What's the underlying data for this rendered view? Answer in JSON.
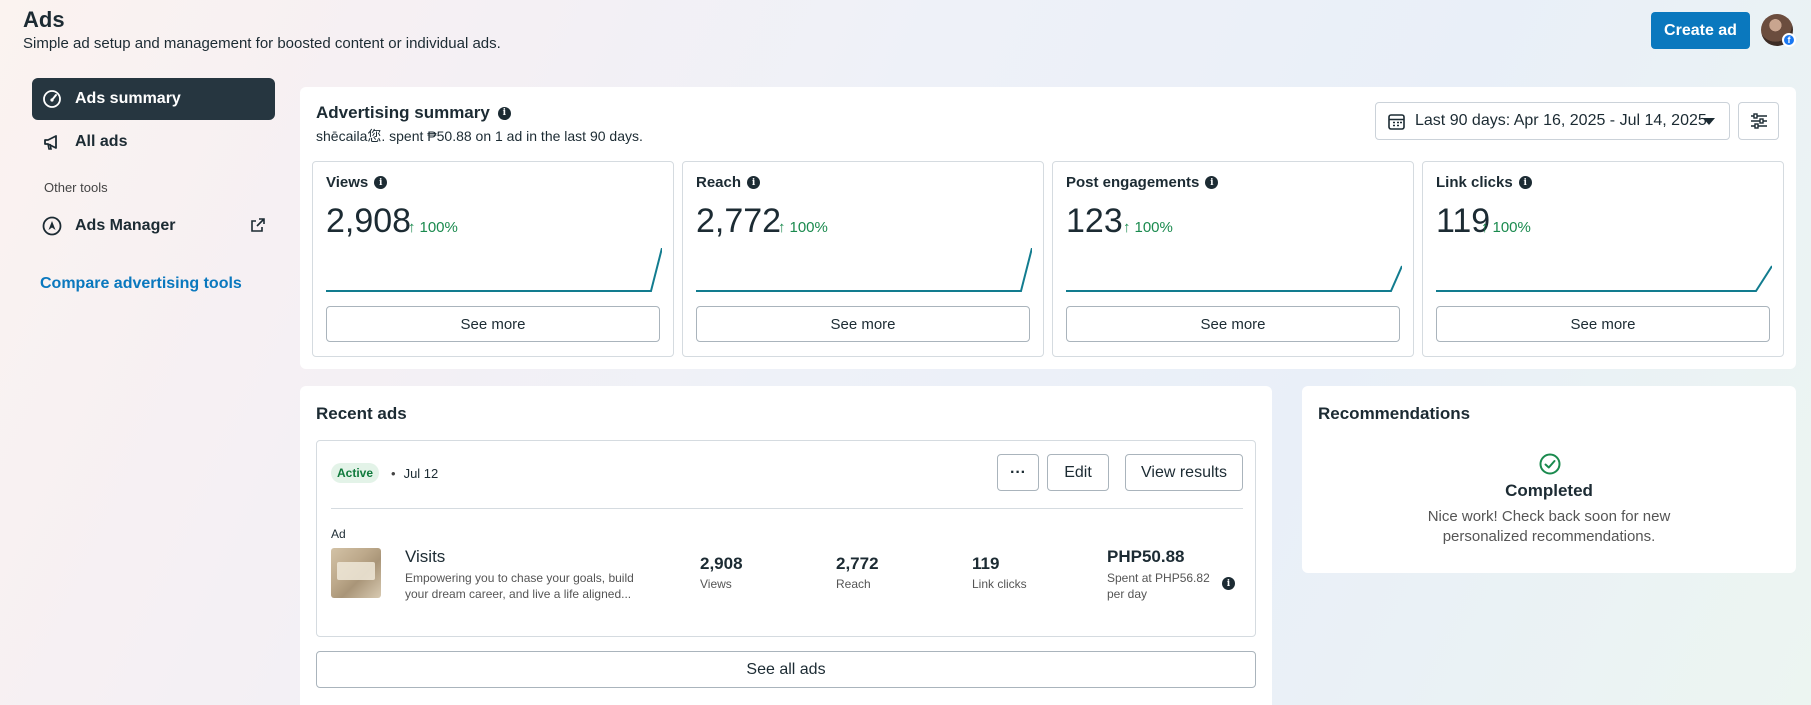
{
  "header": {
    "title": "Ads",
    "subtitle": "Simple ad setup and management for boosted content or individual ads.",
    "create_label": "Create ad"
  },
  "sidebar": {
    "items": [
      {
        "label": "Ads summary",
        "icon": "gauge-icon",
        "active": true
      },
      {
        "label": "All ads",
        "icon": "megaphone-icon",
        "active": false
      }
    ],
    "other_tools_label": "Other tools",
    "ads_manager_label": "Ads Manager",
    "compare_label": "Compare advertising tools"
  },
  "summary": {
    "title": "Advertising summary",
    "subtitle": "shēcaila您. spent ₱50.88 on 1 ad in the last 90 days.",
    "date_range": "Last 90 days: Apr 16, 2025 - Jul 14, 2025",
    "see_more_label": "See more",
    "metrics": [
      {
        "label": "Views",
        "value": "2,908",
        "change": "100%"
      },
      {
        "label": "Reach",
        "value": "2,772",
        "change": "100%"
      },
      {
        "label": "Post engagements",
        "value": "123",
        "change": "100%"
      },
      {
        "label": "Link clicks",
        "value": "119",
        "change": "100%"
      }
    ]
  },
  "recent": {
    "title": "Recent ads",
    "status": "Active",
    "date": "Jul 12",
    "more_label": "···",
    "edit_label": "Edit",
    "view_results_label": "View results",
    "ad_type": "Ad",
    "ad_name": "Visits",
    "ad_description": "Empowering you to chase your goals, build your dream career, and live a life aligned...",
    "stats": [
      {
        "value": "2,908",
        "label": "Views"
      },
      {
        "value": "2,772",
        "label": "Reach"
      },
      {
        "value": "119",
        "label": "Link clicks"
      }
    ],
    "spend_value": "PHP50.88",
    "spend_label": "Spent at PHP56.82 per day",
    "see_all_label": "See all ads"
  },
  "recommendations": {
    "title": "Recommendations",
    "status": "Completed",
    "message": "Nice work! Check back soon for new personalized recommendations."
  },
  "colors": {
    "primary": "#0a78be",
    "active_nav": "#263640",
    "positive": "#1a8a4e",
    "sparkline": "#127c8f"
  }
}
